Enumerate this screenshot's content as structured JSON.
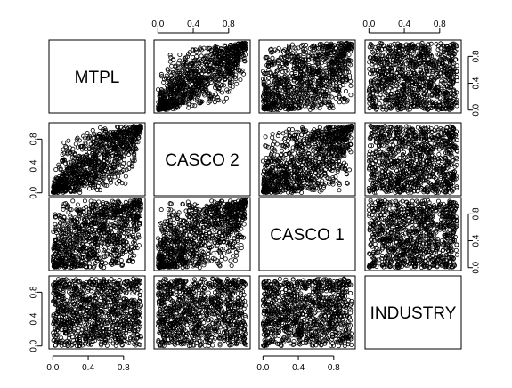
{
  "chart_data": {
    "type": "scatter",
    "subtype": "scatterplot-matrix",
    "variables": [
      "MTPL",
      "CASCO 2",
      "CASCO 1",
      "INDUSTRY"
    ],
    "xlim": [
      0,
      1
    ],
    "ylim": [
      0,
      1
    ],
    "ticks": [
      0.0,
      0.4,
      0.8
    ],
    "tick_labels": [
      "0.0",
      "0.4",
      "0.8"
    ],
    "point_style": "open-circle",
    "n_points_per_panel": 1000,
    "rank_correlation": [
      [
        1.0,
        0.78,
        0.45,
        0.0
      ],
      [
        0.78,
        1.0,
        0.62,
        0.0
      ],
      [
        0.45,
        0.62,
        1.0,
        0.0
      ],
      [
        0.0,
        0.0,
        0.0,
        1.0
      ]
    ],
    "colors": {
      "points": "#000000",
      "background": "#ffffff"
    }
  }
}
